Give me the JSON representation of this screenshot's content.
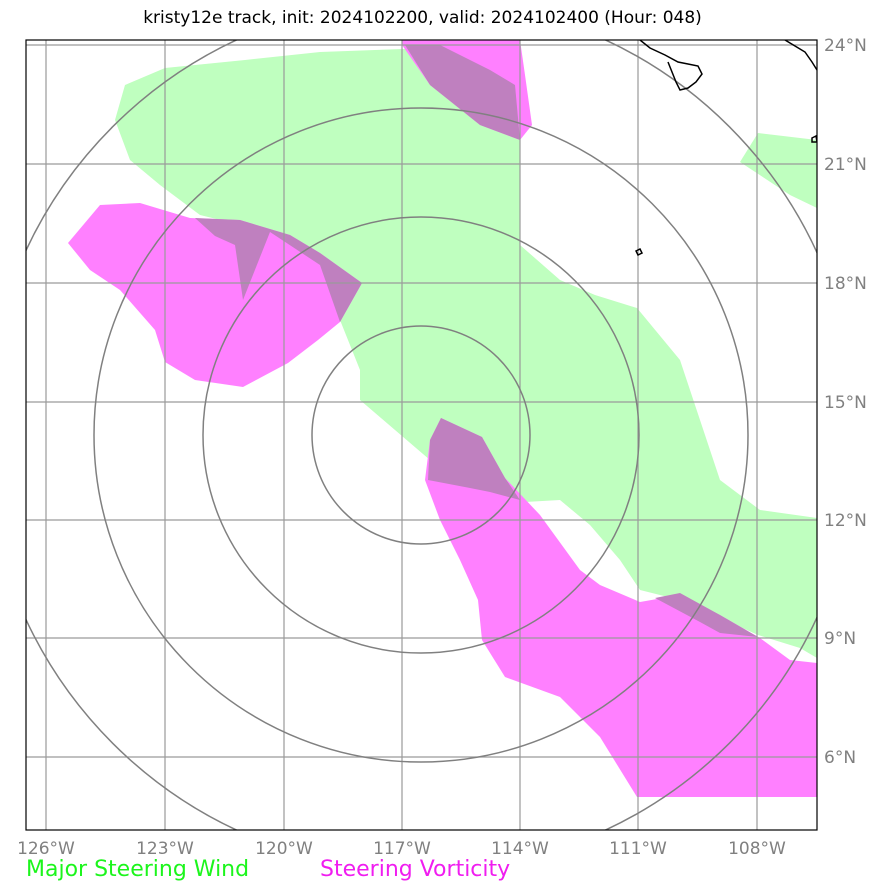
{
  "title": "kristy12e track, init: 2024102200, valid: 2024102400 (Hour: 048)",
  "map": {
    "lon_range": [
      -126.5,
      -106.8
    ],
    "lat_range": [
      4.3,
      24.2
    ],
    "lon_ticks": [
      {
        "value": -126,
        "label": "126°W"
      },
      {
        "value": -123,
        "label": "123°W"
      },
      {
        "value": -120,
        "label": "120°W"
      },
      {
        "value": -117,
        "label": "117°W"
      },
      {
        "value": -114,
        "label": "114°W"
      },
      {
        "value": -111,
        "label": "111°W"
      },
      {
        "value": -108,
        "label": "108°W"
      }
    ],
    "lat_ticks": [
      {
        "value": 24,
        "label": "24°N"
      },
      {
        "value": 21,
        "label": "21°N"
      },
      {
        "value": 18,
        "label": "18°N"
      },
      {
        "value": 15,
        "label": "15°N"
      },
      {
        "value": 12,
        "label": "12°N"
      },
      {
        "value": 9,
        "label": "9°N"
      },
      {
        "value": 6,
        "label": "6°N"
      }
    ],
    "grid": true,
    "range_rings": {
      "center": {
        "lon": -117,
        "lat": 14.3
      },
      "radii_deg": [
        2.75,
        5.5,
        8.25,
        11
      ]
    },
    "colors": {
      "wind": "#bfffbf",
      "vorticity": "#ff80ff",
      "overlap": "#bf80bf",
      "grid": "#9a9a9a",
      "ring": "#808080",
      "coast": "#000000"
    }
  },
  "legend": {
    "wind_label": "Major Steering Wind",
    "vorticity_label": "Steering Vorticity",
    "wind_color": "#1cf51c",
    "vorticity_color": "#f01df0"
  }
}
